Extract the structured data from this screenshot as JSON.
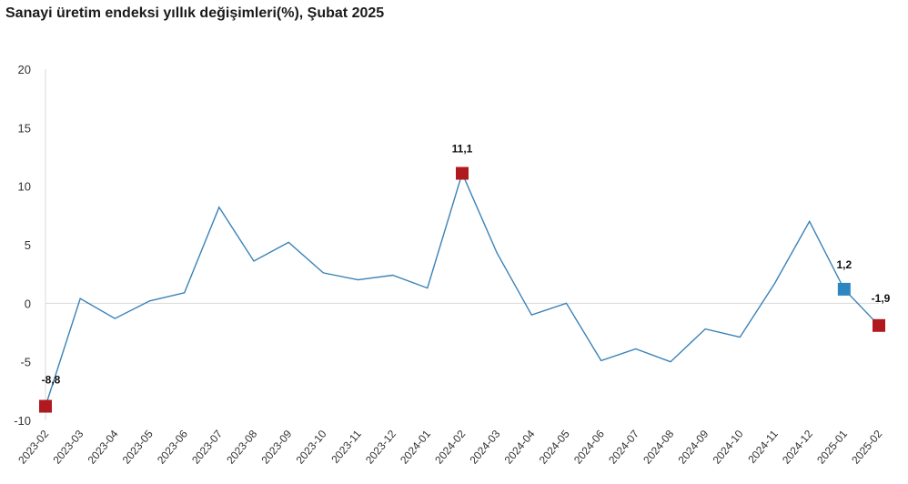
{
  "chart_data": {
    "type": "line",
    "title": "Sanayi üretim endeksi yıllık değişimleri(%), Şubat 2025",
    "xlabel": "",
    "ylabel": "",
    "ylim": [
      -10,
      20
    ],
    "yticks": [
      20,
      15,
      10,
      5,
      0,
      -5,
      -10
    ],
    "grid": false,
    "line_color": "#3a82b7",
    "zero_line_color": "#d9d9d9",
    "categories": [
      "2023-02",
      "2023-03",
      "2023-04",
      "2023-05",
      "2023-06",
      "2023-07",
      "2023-08",
      "2023-09",
      "2023-10",
      "2023-11",
      "2023-12",
      "2024-01",
      "2024-02",
      "2024-03",
      "2024-04",
      "2024-05",
      "2024-06",
      "2024-07",
      "2024-08",
      "2024-09",
      "2024-10",
      "2024-11",
      "2024-12",
      "2025-01",
      "2025-02"
    ],
    "series": [
      {
        "values": [
          -8.8,
          0.4,
          -1.3,
          0.2,
          0.9,
          8.2,
          3.6,
          5.2,
          2.6,
          2.0,
          2.4,
          1.3,
          11.1,
          4.3,
          -1.0,
          0.0,
          -4.9,
          -3.9,
          -5.0,
          -2.2,
          -2.9,
          1.7,
          7.0,
          1.2,
          -1.9
        ]
      }
    ],
    "highlights": [
      {
        "index": 0,
        "label": "-8,8",
        "color": "#b01a1e"
      },
      {
        "index": 12,
        "label": "11,1",
        "color": "#b01a1e"
      },
      {
        "index": 23,
        "label": "1,2",
        "color": "#2e86c1"
      },
      {
        "index": 24,
        "label": "-1,9",
        "color": "#b01a1e"
      }
    ]
  }
}
